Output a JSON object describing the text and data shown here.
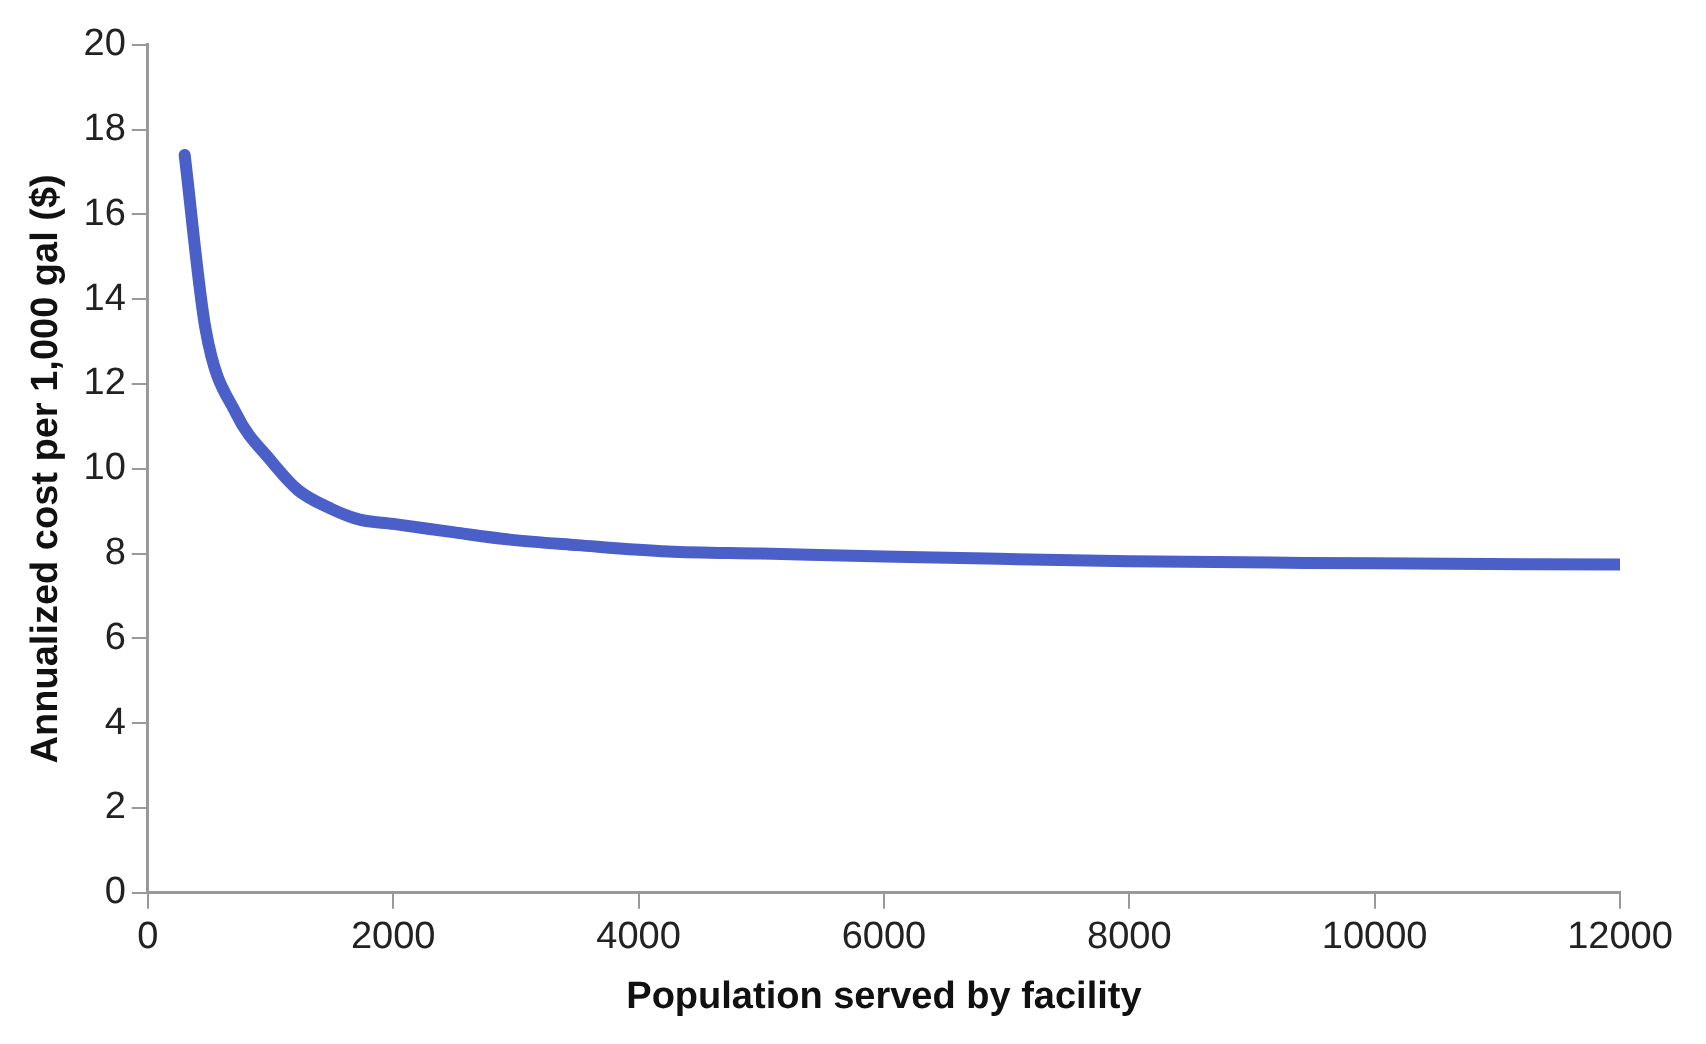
{
  "chart_data": {
    "type": "line",
    "xlabel": "Population served by facility",
    "ylabel": "Annualized cost per 1,000 gal ($)",
    "series": [
      {
        "color": "#4a5fc8",
        "x": [
          300,
          470,
          720,
          1000,
          1223,
          1500,
          1726,
          2000,
          2500,
          2950,
          3500,
          4240,
          5000,
          6000,
          6520,
          8000,
          10000,
          12000
        ],
        "values": [
          17.4,
          13.3,
          11.3,
          10.2,
          9.5,
          9.05,
          8.8,
          8.7,
          8.5,
          8.33,
          8.2,
          8.05,
          8.0,
          7.93,
          7.9,
          7.82,
          7.77,
          7.74
        ]
      }
    ],
    "xlim": [
      0,
      12000
    ],
    "xticks": [
      0,
      2000,
      4000,
      6000,
      8000,
      10000,
      12000
    ],
    "ylim": [
      0,
      20
    ],
    "yticks": [
      0,
      2,
      4,
      6,
      8,
      10,
      12,
      14,
      16,
      18,
      20
    ],
    "grid": false,
    "legend": false,
    "marker": "none",
    "line_style": "solid"
  }
}
